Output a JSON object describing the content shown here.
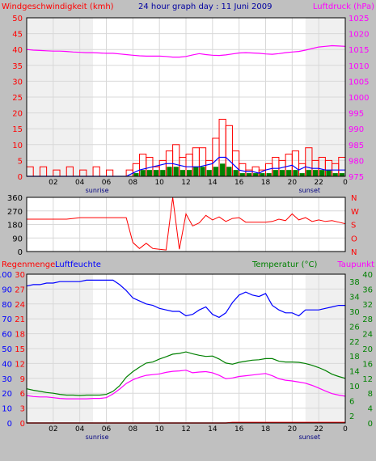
{
  "colors": {
    "background": "#c0c0c0",
    "plot_bg": "#ffffff",
    "wind": "#ff0000",
    "gust": "#0000ff",
    "wind_avg": "#008000",
    "pressure": "#ff00ff",
    "direction": "#ff0000",
    "rain": "#ff0000",
    "humidity": "#0000ff",
    "temperature": "#008000",
    "dewpoint": "#ff00ff",
    "grid": "#d8d8d8",
    "night": "#f0f0f0"
  },
  "chart_data": [
    {
      "type": "bar",
      "title": "24 hour graph day : 11 Juni 2009",
      "ylabel": "Windgeschwindigkeit (kmh)",
      "y2label": "Luftdruck (hPa)",
      "ylim": [
        0,
        50
      ],
      "y2lim": [
        975,
        1025
      ],
      "yticks": [
        "0",
        "5",
        "10",
        "15",
        "20",
        "25",
        "30",
        "35",
        "40",
        "45",
        "50"
      ],
      "y2ticks": [
        "975",
        "980",
        "985",
        "990",
        "995",
        "1000",
        "1005",
        "1010",
        "1015",
        "1020",
        "1025"
      ],
      "xticks": [
        "02",
        "04",
        "06",
        "08",
        "10",
        "12",
        "14",
        "16",
        "18",
        "20",
        "22",
        "0"
      ],
      "markers": [
        {
          "label": "sunrise",
          "x": 5.0
        },
        {
          "label": "sunset",
          "x": 21.0
        }
      ],
      "x": [
        0,
        0.5,
        1,
        1.5,
        2,
        2.5,
        3,
        3.5,
        4,
        4.5,
        5,
        5.5,
        6,
        6.5,
        7,
        7.5,
        8,
        8.5,
        9,
        9.5,
        10,
        10.5,
        11,
        11.5,
        12,
        12.5,
        13,
        13.5,
        14,
        14.5,
        15,
        15.5,
        16,
        16.5,
        17,
        17.5,
        18,
        18.5,
        19,
        19.5,
        20,
        20.5,
        21,
        21.5,
        22,
        22.5,
        23,
        23.5,
        24
      ],
      "series": [
        {
          "name": "wind",
          "axis": "left",
          "style": "bars",
          "values": [
            3,
            0,
            3,
            0,
            2,
            0,
            3,
            0,
            2,
            0,
            3,
            0,
            2,
            0,
            0,
            2,
            4,
            7,
            6,
            3,
            5,
            8,
            10,
            6,
            7,
            9,
            9,
            5,
            12,
            18,
            16,
            8,
            4,
            2,
            3,
            2,
            4,
            6,
            5,
            7,
            8,
            4,
            9,
            5,
            6,
            5,
            4,
            6,
            3
          ]
        },
        {
          "name": "gust",
          "axis": "left",
          "style": "line",
          "values": [
            0,
            0,
            0,
            0,
            0,
            0,
            0,
            0,
            0,
            0,
            0,
            0,
            0,
            0,
            0,
            0,
            1,
            2,
            2.5,
            3,
            3.5,
            4,
            4,
            3.5,
            3,
            3,
            3,
            3.5,
            4,
            6,
            6,
            4,
            2,
            1.5,
            1.5,
            1,
            2,
            2.5,
            2.5,
            3,
            3.5,
            2,
            3,
            2.5,
            2.5,
            2,
            2,
            2,
            2
          ]
        },
        {
          "name": "wind average",
          "axis": "left",
          "style": "bars",
          "values": [
            0,
            0,
            0,
            0,
            0,
            0,
            0,
            0,
            0,
            0,
            0,
            0,
            0,
            0,
            0,
            0,
            1,
            2,
            2,
            2,
            2,
            3,
            3,
            2,
            2,
            3,
            3,
            2,
            3,
            4,
            3,
            2,
            1,
            1,
            1,
            1,
            1,
            2,
            2,
            2,
            2,
            1,
            2,
            2,
            2,
            2,
            1,
            1,
            1
          ]
        },
        {
          "name": "pressure",
          "axis": "right",
          "style": "line",
          "values": [
            1015,
            1014.8,
            1014.7,
            1014.6,
            1014.5,
            1014.5,
            1014.4,
            1014.2,
            1014.1,
            1014,
            1014,
            1013.9,
            1013.8,
            1013.8,
            1013.6,
            1013.4,
            1013.2,
            1013,
            1012.9,
            1012.9,
            1012.9,
            1012.8,
            1012.6,
            1012.6,
            1012.8,
            1013.3,
            1013.7,
            1013.4,
            1013.2,
            1013.1,
            1013.3,
            1013.6,
            1013.9,
            1014,
            1013.9,
            1013.8,
            1013.6,
            1013.5,
            1013.7,
            1014,
            1014.2,
            1014.4,
            1014.8,
            1015.3,
            1015.8,
            1016,
            1016.2,
            1016.1,
            1016
          ]
        }
      ]
    },
    {
      "type": "line",
      "ylim": [
        0,
        360
      ],
      "yticks": [
        "0",
        "90",
        "180",
        "270",
        "360"
      ],
      "y2ticks": [
        "N",
        "O",
        "S",
        "W",
        "N"
      ],
      "x": [
        0,
        0.5,
        1,
        1.5,
        2,
        2.5,
        3,
        3.5,
        4,
        4.5,
        5,
        5.5,
        6,
        6.5,
        7,
        7.5,
        8,
        8.5,
        9,
        9.5,
        10,
        10.5,
        11,
        11.5,
        12,
        12.5,
        13,
        13.5,
        14,
        14.5,
        15,
        15.5,
        16,
        16.5,
        17,
        17.5,
        18,
        18.5,
        19,
        19.5,
        20,
        20.5,
        21,
        21.5,
        22,
        22.5,
        23,
        23.5,
        24
      ],
      "series": [
        {
          "name": "direction",
          "values": [
            215,
            215,
            215,
            215,
            215,
            215,
            215,
            220,
            225,
            225,
            225,
            225,
            225,
            225,
            225,
            225,
            60,
            20,
            55,
            20,
            15,
            10,
            360,
            15,
            250,
            170,
            190,
            240,
            210,
            230,
            200,
            220,
            225,
            195,
            195,
            195,
            195,
            200,
            215,
            205,
            250,
            210,
            225,
            200,
            210,
            200,
            205,
            195,
            185
          ]
        }
      ]
    },
    {
      "type": "line",
      "ylabel": "Regenmenge",
      "ylabel2": "Luftfeuchte",
      "y2label": "Temperatur (°C)",
      "y2label2": "Taupunkt",
      "rain_ticks": [
        "0",
        "3",
        "6",
        "9",
        "12",
        "15",
        "18",
        "21",
        "24",
        "27",
        "30"
      ],
      "humidity_ticks": [
        "0",
        "10",
        "20",
        "30",
        "40",
        "50",
        "60",
        "70",
        "80",
        "90",
        "100"
      ],
      "temp_ticks": [
        "0",
        "4",
        "8",
        "12",
        "16",
        "20",
        "24",
        "28",
        "32",
        "36",
        "40"
      ],
      "temp_ticks_minor": [
        "2",
        "6",
        "10",
        "14",
        "18",
        "22",
        "26",
        "30",
        "34",
        "38"
      ],
      "ylim": [
        0,
        40
      ],
      "xticks": [
        "02",
        "04",
        "06",
        "08",
        "10",
        "12",
        "14",
        "16",
        "18",
        "20",
        "22",
        "0"
      ],
      "markers": [
        {
          "label": "sunrise",
          "x": 5.0
        },
        {
          "label": "sunset",
          "x": 21.0
        }
      ],
      "x": [
        0,
        0.5,
        1,
        1.5,
        2,
        2.5,
        3,
        3.5,
        4,
        4.5,
        5,
        5.5,
        6,
        6.5,
        7,
        7.5,
        8,
        8.5,
        9,
        9.5,
        10,
        10.5,
        11,
        11.5,
        12,
        12.5,
        13,
        13.5,
        14,
        14.5,
        15,
        15.5,
        16,
        16.5,
        17,
        17.5,
        18,
        18.5,
        19,
        19.5,
        20,
        20.5,
        21,
        21.5,
        22,
        22.5,
        23,
        23.5,
        24
      ],
      "series": [
        {
          "name": "Regenmenge",
          "axis": "rain",
          "values": [
            0,
            0,
            0,
            0,
            0,
            0,
            0,
            0,
            0,
            0,
            0,
            0,
            0,
            0,
            0,
            0,
            0,
            0,
            0,
            0,
            0,
            0,
            0,
            0,
            0,
            0,
            0,
            0,
            0,
            0,
            0,
            0.1,
            0.1,
            0.1,
            0.1,
            0.1,
            0.1,
            0.1,
            0.1,
            0.1,
            0.1,
            0.1,
            0.1,
            0.1,
            0.1,
            0.1,
            0.1,
            0.1,
            0.1
          ]
        },
        {
          "name": "Luftfeuchte",
          "axis": "humidity",
          "values": [
            92,
            93,
            93,
            94,
            94,
            95,
            95,
            95,
            95,
            96,
            96,
            96,
            96,
            96,
            93,
            89,
            84,
            82,
            80,
            79,
            77,
            76,
            75,
            75,
            72,
            73,
            76,
            78,
            73,
            71,
            74,
            81,
            86,
            88,
            86,
            85,
            87,
            79,
            76,
            74,
            74,
            72,
            76,
            76,
            76,
            77,
            78,
            79,
            79
          ]
        },
        {
          "name": "Temperatur",
          "axis": "temp",
          "values": [
            9.2,
            8.8,
            8.5,
            8.2,
            8.0,
            7.7,
            7.5,
            7.5,
            7.4,
            7.5,
            7.5,
            7.5,
            7.7,
            8.5,
            10.0,
            12.3,
            13.8,
            15.0,
            16.1,
            16.4,
            17.2,
            17.8,
            18.5,
            18.7,
            19.1,
            18.6,
            18.2,
            17.9,
            18.0,
            17.2,
            16.1,
            15.8,
            16.3,
            16.6,
            16.9,
            17.0,
            17.3,
            17.3,
            16.6,
            16.4,
            16.4,
            16.3,
            16.0,
            15.5,
            14.9,
            14.1,
            13.1,
            12.5,
            12.0
          ]
        },
        {
          "name": "Taupunkt",
          "axis": "temp",
          "values": [
            7.4,
            7.1,
            7.0,
            7.0,
            6.8,
            6.6,
            6.5,
            6.5,
            6.5,
            6.5,
            6.6,
            6.6,
            6.8,
            7.8,
            9.1,
            10.6,
            11.6,
            12.3,
            12.8,
            13.0,
            13.2,
            13.6,
            13.9,
            14.0,
            14.2,
            13.5,
            13.7,
            13.8,
            13.5,
            12.8,
            11.9,
            12.1,
            12.5,
            12.7,
            12.9,
            13.1,
            13.3,
            12.7,
            11.9,
            11.5,
            11.3,
            11.0,
            10.7,
            10.1,
            9.4,
            8.6,
            7.9,
            7.5,
            7.2
          ]
        }
      ]
    }
  ]
}
